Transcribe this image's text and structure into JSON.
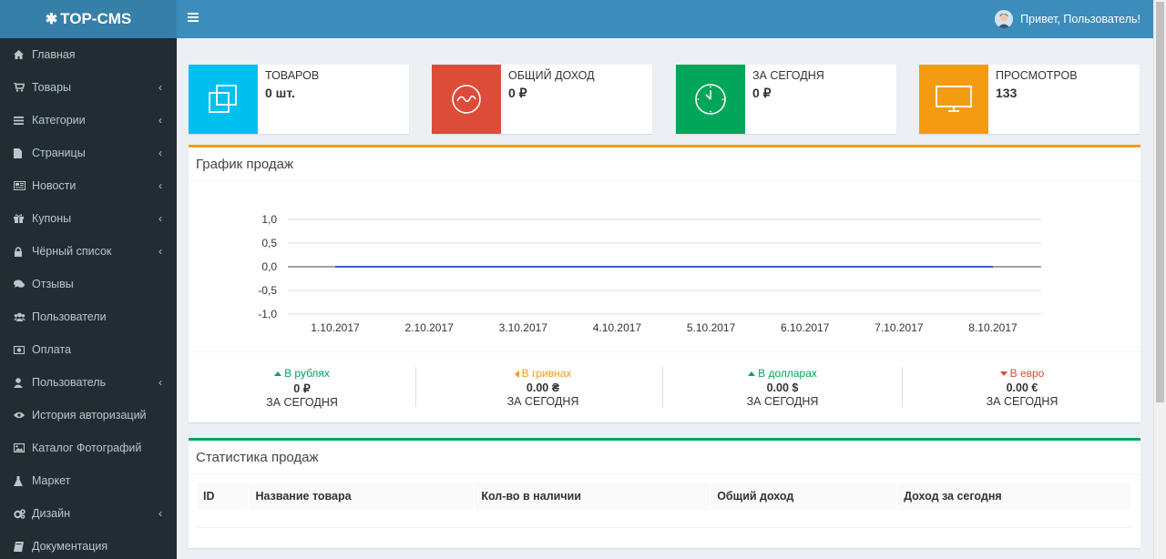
{
  "brand": {
    "name": "TOP-CMS",
    "icon": "gear-icon"
  },
  "header": {
    "user_greeting": "Привет, Пользователь!"
  },
  "sidebar": {
    "items": [
      {
        "label": "Главная",
        "icon": "home-icon",
        "has_children": false
      },
      {
        "label": "Товары",
        "icon": "cart-icon",
        "has_children": true
      },
      {
        "label": "Категории",
        "icon": "list-icon",
        "has_children": true
      },
      {
        "label": "Страницы",
        "icon": "file-icon",
        "has_children": true
      },
      {
        "label": "Новости",
        "icon": "newspaper-icon",
        "has_children": true
      },
      {
        "label": "Купоны",
        "icon": "gift-icon",
        "has_children": true
      },
      {
        "label": "Чёрный список",
        "icon": "lock-icon",
        "has_children": true
      },
      {
        "label": "Отзывы",
        "icon": "comments-icon",
        "has_children": false
      },
      {
        "label": "Пользователи",
        "icon": "users-icon",
        "has_children": false
      },
      {
        "label": "Оплата",
        "icon": "money-icon",
        "has_children": false
      },
      {
        "label": "Пользователь",
        "icon": "user-icon",
        "has_children": true
      },
      {
        "label": "История авторизаций",
        "icon": "eye-icon",
        "has_children": false
      },
      {
        "label": "Каталог Фотографий",
        "icon": "image-icon",
        "has_children": false
      },
      {
        "label": "Маркет",
        "icon": "flask-icon",
        "has_children": false
      },
      {
        "label": "Дизайн",
        "icon": "cogs-icon",
        "has_children": true
      },
      {
        "label": "Документация",
        "icon": "book-icon",
        "has_children": false
      }
    ]
  },
  "info_boxes": [
    {
      "title": "ТОВАРОВ",
      "value": "0 шт.",
      "color": "#00c0ef",
      "icon": "copy-icon"
    },
    {
      "title": "ОБЩИЙ ДОХОД",
      "value": "0 ₽",
      "color": "#dd4b39",
      "icon": "pulse-icon"
    },
    {
      "title": "ЗА СЕГОДНЯ",
      "value": "0 ₽",
      "color": "#00a65a",
      "icon": "clock-icon"
    },
    {
      "title": "ПРОСМОТРОВ",
      "value": "133",
      "color": "#f39c12",
      "icon": "monitor-icon"
    }
  ],
  "sales_chart": {
    "title": "График продаж",
    "accent": "#f39c12"
  },
  "chart_data": {
    "type": "line",
    "x": [
      "1.10.2017",
      "2.10.2017",
      "3.10.2017",
      "4.10.2017",
      "5.10.2017",
      "6.10.2017",
      "7.10.2017",
      "8.10.2017"
    ],
    "series": [
      {
        "values": [
          0,
          0,
          0,
          0,
          0,
          0,
          0,
          0
        ],
        "color": "#3b5bdb"
      }
    ],
    "yticks": [
      "1,0",
      "0,5",
      "0,0",
      "-0,5",
      "-1,0"
    ],
    "ylim": [
      -1,
      1
    ],
    "grid": true
  },
  "currency_stats": [
    {
      "label": "В рублях",
      "direction": "up",
      "color": "#00a65a",
      "amount": "0 ₽",
      "period": "ЗА СЕГОДНЯ"
    },
    {
      "label": "В гривнах",
      "direction": "left",
      "color": "#f39c12",
      "amount": "0.00 ₴",
      "period": "ЗА СЕГОДНЯ"
    },
    {
      "label": "В долларах",
      "direction": "up",
      "color": "#00a65a",
      "amount": "0.00 $",
      "period": "ЗА СЕГОДНЯ"
    },
    {
      "label": "В евро",
      "direction": "down",
      "color": "#dd4b39",
      "amount": "0.00 €",
      "period": "ЗА СЕГОДНЯ"
    }
  ],
  "sales_stats": {
    "title": "Статистика продаж",
    "accent": "#00a65a",
    "columns": [
      "ID",
      "Название товара",
      "Кол-во в наличии",
      "Общий доход",
      "Доход за сегодня"
    ]
  }
}
